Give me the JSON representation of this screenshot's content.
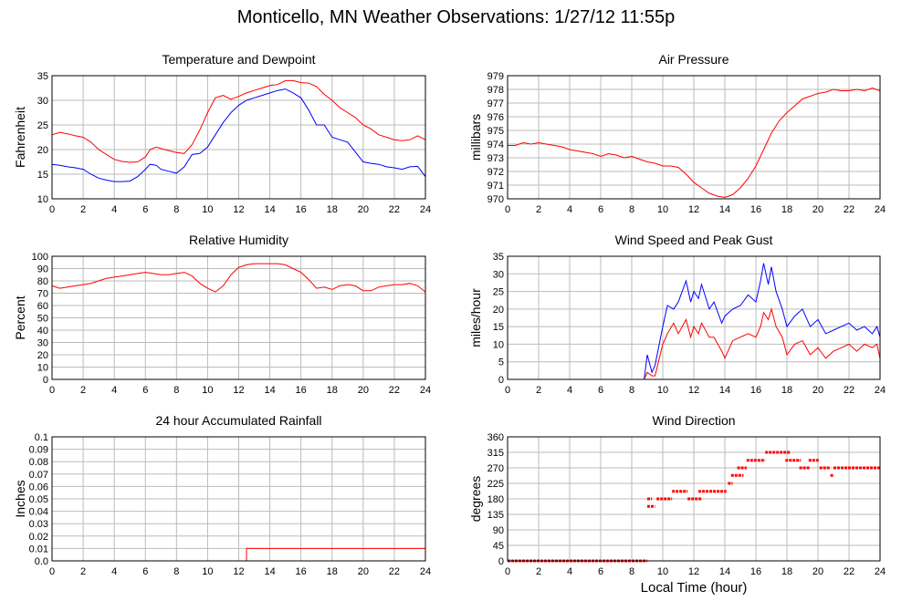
{
  "page": {
    "title": "Monticello, MN Weather Observations: 1/27/12 11:55p"
  },
  "colors": {
    "red": "#ff0000",
    "blue": "#0000ff",
    "grid": "#bbbbbb",
    "frame": "#000000"
  },
  "chart_data": [
    {
      "type": "line",
      "title": "Temperature and Dewpoint",
      "xlabel": "",
      "ylabel": "Fahrenheit",
      "xlim": [
        0,
        24
      ],
      "ylim": [
        10,
        35
      ],
      "xticks": [
        0,
        2,
        4,
        6,
        8,
        10,
        12,
        14,
        16,
        18,
        20,
        22,
        24
      ],
      "yticks": [
        10,
        15,
        20,
        25,
        30,
        35
      ],
      "ytick_labels": [
        "10",
        "15",
        "20",
        "25",
        "30",
        "35"
      ],
      "grid": true,
      "series": [
        {
          "color": "#ff0000",
          "x": [
            0,
            0.5,
            1,
            1.5,
            2,
            2.5,
            3,
            3.5,
            4,
            4.5,
            5,
            5.5,
            6,
            6.3,
            6.7,
            7,
            7.5,
            8,
            8.5,
            9,
            9.5,
            10,
            10.5,
            11,
            11.5,
            12,
            12.5,
            13,
            13.5,
            14,
            14.5,
            15,
            15.5,
            16,
            16.5,
            17,
            17.5,
            18,
            18.5,
            19,
            19.5,
            20,
            20.5,
            21,
            21.5,
            22,
            22.5,
            23,
            23.5,
            24
          ],
          "y": [
            23,
            23.5,
            23.2,
            22.8,
            22.5,
            21.5,
            20,
            19,
            18,
            17.6,
            17.4,
            17.5,
            18.5,
            20,
            20.5,
            20.2,
            19.8,
            19.4,
            19.2,
            21,
            24,
            27.5,
            30.5,
            31,
            30.2,
            30.8,
            31.5,
            32,
            32.5,
            33,
            33.2,
            34,
            34,
            33.6,
            33.5,
            32.8,
            31.2,
            30,
            28.5,
            27.5,
            26.5,
            25,
            24.2,
            23,
            22.5,
            22,
            21.8,
            22,
            22.8,
            22
          ]
        },
        {
          "color": "#0000ff",
          "x": [
            0,
            0.5,
            1,
            1.5,
            2,
            2.5,
            3,
            3.5,
            4,
            4.5,
            5,
            5.5,
            6,
            6.3,
            6.7,
            7,
            7.5,
            8,
            8.5,
            9,
            9.5,
            10,
            10.5,
            11,
            11.5,
            12,
            12.5,
            13,
            13.5,
            14,
            14.5,
            15,
            15.5,
            16,
            16.5,
            17,
            17.5,
            18,
            18.5,
            19,
            19.5,
            20,
            20.5,
            21,
            21.5,
            22,
            22.5,
            23,
            23.5,
            24
          ],
          "y": [
            17,
            16.8,
            16.5,
            16.3,
            16,
            15,
            14.2,
            13.8,
            13.5,
            13.5,
            13.6,
            14.5,
            16,
            17,
            16.8,
            16,
            15.6,
            15.2,
            16.5,
            19,
            19.2,
            20.5,
            23,
            25.5,
            27.5,
            29,
            30,
            30.5,
            31,
            31.5,
            32,
            32.3,
            31.5,
            30.5,
            28,
            25,
            25,
            22.5,
            22,
            21.5,
            19.5,
            17.5,
            17.2,
            17,
            16.5,
            16.3,
            16,
            16.5,
            16.6,
            14.5
          ]
        }
      ]
    },
    {
      "type": "line",
      "title": "Air Pressure",
      "xlabel": "",
      "ylabel": "millibars",
      "xlim": [
        0,
        24
      ],
      "ylim": [
        970,
        979
      ],
      "xticks": [
        0,
        2,
        4,
        6,
        8,
        10,
        12,
        14,
        16,
        18,
        20,
        22,
        24
      ],
      "yticks": [
        970,
        971,
        972,
        973,
        974,
        975,
        976,
        977,
        978,
        979
      ],
      "ytick_labels": [
        "970",
        "971",
        "972",
        "973",
        "974",
        "975",
        "976",
        "977",
        "978",
        "979"
      ],
      "grid": true,
      "series": [
        {
          "color": "#ff0000",
          "x": [
            0,
            0.5,
            1,
            1.5,
            2,
            2.5,
            3,
            3.5,
            4,
            4.5,
            5,
            5.5,
            6,
            6.5,
            7,
            7.5,
            8,
            8.5,
            9,
            9.5,
            10,
            10.5,
            11,
            11.5,
            12,
            12.5,
            13,
            13.5,
            14,
            14.5,
            15,
            15.5,
            16,
            16.5,
            17,
            17.5,
            18,
            18.5,
            19,
            19.5,
            20,
            20.5,
            21,
            21.5,
            22,
            22.5,
            23,
            23.5,
            24
          ],
          "y": [
            973.9,
            973.9,
            974.1,
            974.0,
            974.1,
            974.0,
            973.9,
            973.8,
            973.6,
            973.5,
            973.4,
            973.3,
            973.1,
            973.3,
            973.2,
            973.0,
            973.1,
            972.9,
            972.7,
            972.6,
            972.4,
            972.4,
            972.3,
            971.8,
            971.2,
            970.8,
            970.4,
            970.2,
            970.1,
            970.3,
            970.8,
            971.5,
            972.4,
            973.6,
            974.8,
            975.7,
            976.3,
            976.8,
            977.3,
            977.5,
            977.7,
            977.8,
            978.0,
            977.9,
            977.9,
            978.0,
            977.9,
            978.1,
            977.9
          ]
        }
      ]
    },
    {
      "type": "line",
      "title": "Relative Humidity",
      "xlabel": "",
      "ylabel": "Percent",
      "xlim": [
        0,
        24
      ],
      "ylim": [
        0,
        100
      ],
      "xticks": [
        0,
        2,
        4,
        6,
        8,
        10,
        12,
        14,
        16,
        18,
        20,
        22,
        24
      ],
      "yticks": [
        0,
        10,
        20,
        30,
        40,
        50,
        60,
        70,
        80,
        90,
        100
      ],
      "ytick_labels": [
        "0",
        "10",
        "20",
        "30",
        "40",
        "50",
        "60",
        "70",
        "80",
        "90",
        "100"
      ],
      "grid": true,
      "series": [
        {
          "color": "#ff0000",
          "x": [
            0,
            0.5,
            1,
            1.5,
            2,
            2.5,
            3,
            3.5,
            4,
            4.5,
            5,
            5.5,
            6,
            6.5,
            7,
            7.5,
            8,
            8.5,
            9,
            9.5,
            10,
            10.5,
            11,
            11.5,
            12,
            12.5,
            13,
            13.5,
            14,
            14.5,
            15,
            15.5,
            16,
            16.5,
            17,
            17.5,
            18,
            18.5,
            19,
            19.5,
            20,
            20.5,
            21,
            21.5,
            22,
            22.5,
            23,
            23.5,
            24
          ],
          "y": [
            76,
            74,
            75,
            76,
            77,
            78,
            80,
            82,
            83,
            84,
            85,
            86,
            87,
            86,
            85,
            85,
            86,
            87,
            84,
            78,
            74,
            71,
            76,
            85,
            91,
            93,
            94,
            94,
            94,
            94,
            93,
            90,
            87,
            81,
            74,
            75,
            73,
            76,
            77,
            76,
            72,
            72,
            75,
            76,
            77,
            77,
            78,
            76,
            71
          ]
        }
      ]
    },
    {
      "type": "line",
      "title": "Wind Speed and Peak Gust",
      "xlabel": "",
      "ylabel": "miles/hour",
      "xlim": [
        0,
        24
      ],
      "ylim": [
        0,
        35
      ],
      "xticks": [
        0,
        2,
        4,
        6,
        8,
        10,
        12,
        14,
        16,
        18,
        20,
        22,
        24
      ],
      "yticks": [
        0,
        5,
        10,
        15,
        20,
        25,
        30,
        35
      ],
      "ytick_labels": [
        "0",
        "5",
        "10",
        "15",
        "20",
        "25",
        "30",
        "35"
      ],
      "grid": true,
      "series": [
        {
          "color": "#0000ff",
          "x": [
            0,
            8.8,
            9.0,
            9.3,
            9.5,
            10.0,
            10.3,
            10.7,
            11.0,
            11.5,
            11.8,
            12.0,
            12.3,
            12.5,
            13.0,
            13.3,
            13.8,
            14.0,
            14.5,
            15.0,
            15.5,
            16.0,
            16.3,
            16.5,
            16.8,
            17.0,
            17.3,
            17.7,
            18.0,
            18.5,
            19.0,
            19.5,
            20.0,
            20.5,
            21.0,
            21.5,
            22.0,
            22.5,
            23.0,
            23.5,
            23.8,
            24.0
          ],
          "y": [
            0,
            0,
            7,
            2,
            4,
            15,
            21,
            20,
            22,
            28,
            22,
            25,
            23,
            27,
            20,
            22,
            16,
            18,
            20,
            21,
            24,
            22,
            28,
            33,
            27,
            32,
            25,
            20,
            15,
            18,
            20,
            15,
            17,
            13,
            14,
            15,
            16,
            14,
            15,
            13,
            15,
            12
          ]
        },
        {
          "color": "#ff0000",
          "x": [
            0,
            8.8,
            9.0,
            9.3,
            9.5,
            10.0,
            10.3,
            10.7,
            11.0,
            11.5,
            11.8,
            12.0,
            12.3,
            12.5,
            13.0,
            13.3,
            13.8,
            14.0,
            14.5,
            15.0,
            15.5,
            16.0,
            16.3,
            16.5,
            16.8,
            17.0,
            17.3,
            17.7,
            18.0,
            18.5,
            19.0,
            19.5,
            20.0,
            20.5,
            21.0,
            21.5,
            22.0,
            22.5,
            23.0,
            23.5,
            23.8,
            24.0
          ],
          "y": [
            0,
            0,
            2,
            1,
            1,
            10,
            13,
            16,
            13,
            17,
            12,
            15,
            13,
            16,
            12,
            12,
            8,
            6,
            11,
            12,
            13,
            12,
            15,
            19,
            17,
            20,
            15,
            12,
            7,
            10,
            11,
            7,
            9,
            6,
            8,
            9,
            10,
            8,
            10,
            9,
            10,
            6
          ]
        }
      ]
    },
    {
      "type": "line",
      "title": "24 hour Accumulated Rainfall",
      "xlabel": "",
      "ylabel": "Inches",
      "xlim": [
        0,
        24
      ],
      "ylim": [
        0,
        0.1
      ],
      "xticks": [
        0,
        2,
        4,
        6,
        8,
        10,
        12,
        14,
        16,
        18,
        20,
        22,
        24
      ],
      "yticks": [
        0,
        0.01,
        0.02,
        0.03,
        0.04,
        0.05,
        0.06,
        0.07,
        0.08,
        0.09,
        0.1
      ],
      "ytick_labels": [
        "0.0",
        "0.01",
        "0.02",
        "0.03",
        "0.04",
        "0.05",
        "0.06",
        "0.07",
        "0.08",
        "0.09",
        "0.1"
      ],
      "grid": true,
      "series": [
        {
          "color": "#ff0000",
          "x": [
            0,
            12.5,
            12.5,
            24
          ],
          "y": [
            0,
            0,
            0.01,
            0.01
          ]
        }
      ]
    },
    {
      "type": "scatter",
      "title": "Wind Direction",
      "xlabel": "Local Time (hour)",
      "ylabel": "degrees",
      "xlim": [
        0,
        24
      ],
      "ylim": [
        0,
        360
      ],
      "xticks": [
        0,
        2,
        4,
        6,
        8,
        10,
        12,
        14,
        16,
        18,
        20,
        22,
        24
      ],
      "yticks": [
        0,
        45,
        90,
        135,
        180,
        225,
        270,
        315,
        360
      ],
      "ytick_labels": [
        "0",
        "45",
        "90",
        "135",
        "180",
        "225",
        "270",
        "315",
        "360"
      ],
      "grid": true,
      "series": [
        {
          "color": "#ff0000",
          "segments": [
            [
              0,
              9.0,
              0
            ],
            [
              9.0,
              9.5,
              158
            ],
            [
              9.0,
              9.3,
              180
            ],
            [
              9.6,
              10.6,
              180
            ],
            [
              10.6,
              11.6,
              202
            ],
            [
              11.6,
              12.5,
              180
            ],
            [
              12.3,
              14.1,
              202
            ],
            [
              14.2,
              14.5,
              225
            ],
            [
              14.4,
              15.2,
              248
            ],
            [
              14.8,
              15.4,
              270
            ],
            [
              15.4,
              16.6,
              292
            ],
            [
              16.6,
              18.2,
              315
            ],
            [
              17.9,
              18.9,
              292
            ],
            [
              18.8,
              19.5,
              270
            ],
            [
              19.4,
              20.1,
              292
            ],
            [
              20.1,
              20.8,
              270
            ],
            [
              20.8,
              21.0,
              248
            ],
            [
              21.0,
              24.0,
              270
            ]
          ]
        }
      ]
    }
  ]
}
